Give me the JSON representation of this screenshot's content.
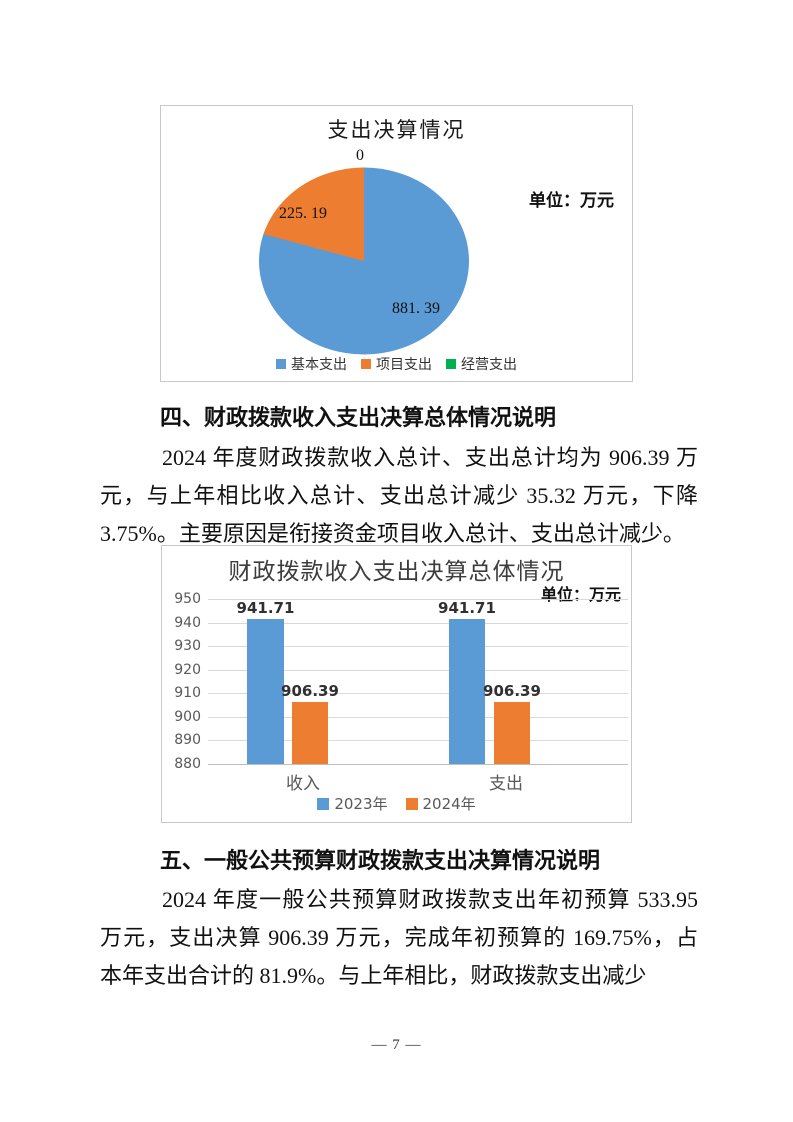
{
  "page": {
    "number_label": "— 7 —"
  },
  "pie_chart": {
    "title": "支出决算情况",
    "unit_label": "单位：万元",
    "value_labels": {
      "operating": "0",
      "project": "225. 19",
      "basic": "881. 39"
    }
  },
  "bar_chart": {
    "title": "财政拨款收入支出决算总体情况",
    "unit_label": "单位：万元"
  },
  "section4": {
    "heading": "四、财政拨款收入支出决算总体情况说明",
    "lines": [
      "2024 年度财政拨款收入总计、支出总计均为 906.39 万",
      "元，与上年相比收入总计、支出总计减少 35.32 万元，下降",
      "3.75%。主要原因是衔接资金项目收入总计、支出总计减少。"
    ]
  },
  "section5": {
    "heading": "五、一般公共预算财政拨款支出决算情况说明",
    "lines": [
      "2024 年度一般公共预算财政拨款支出年初预算 533.95",
      "万元，支出决算 906.39 万元，完成年初预算的 169.75%，占",
      "本年支出合计的 81.9%。与上年相比，财政拨款支出减少"
    ]
  },
  "chart_data": [
    {
      "type": "pie",
      "title": "支出决算情况",
      "unit": "单位：万元",
      "labels": [
        "基本支出",
        "项目支出",
        "经营支出"
      ],
      "values": [
        881.39,
        225.19,
        0
      ],
      "colors": [
        "#5B9BD5",
        "#ED7D31",
        "#00B050"
      ],
      "legend_position": "bottom",
      "start_angle_deg": 0,
      "direction": "clockwise"
    },
    {
      "type": "bar",
      "title": "财政拨款收入支出决算总体情况",
      "unit": "单位：万元",
      "categories": [
        "收入",
        "支出"
      ],
      "series": [
        {
          "name": "2023年",
          "values": [
            941.71,
            941.71
          ],
          "color": "#5B9BD5"
        },
        {
          "name": "2024年",
          "values": [
            906.39,
            906.39
          ],
          "color": "#ED7D31"
        }
      ],
      "ylim": [
        880,
        950
      ],
      "y_ticks": [
        950,
        940,
        930,
        920,
        910,
        900,
        890,
        880
      ],
      "grid": true,
      "legend_position": "bottom"
    }
  ]
}
